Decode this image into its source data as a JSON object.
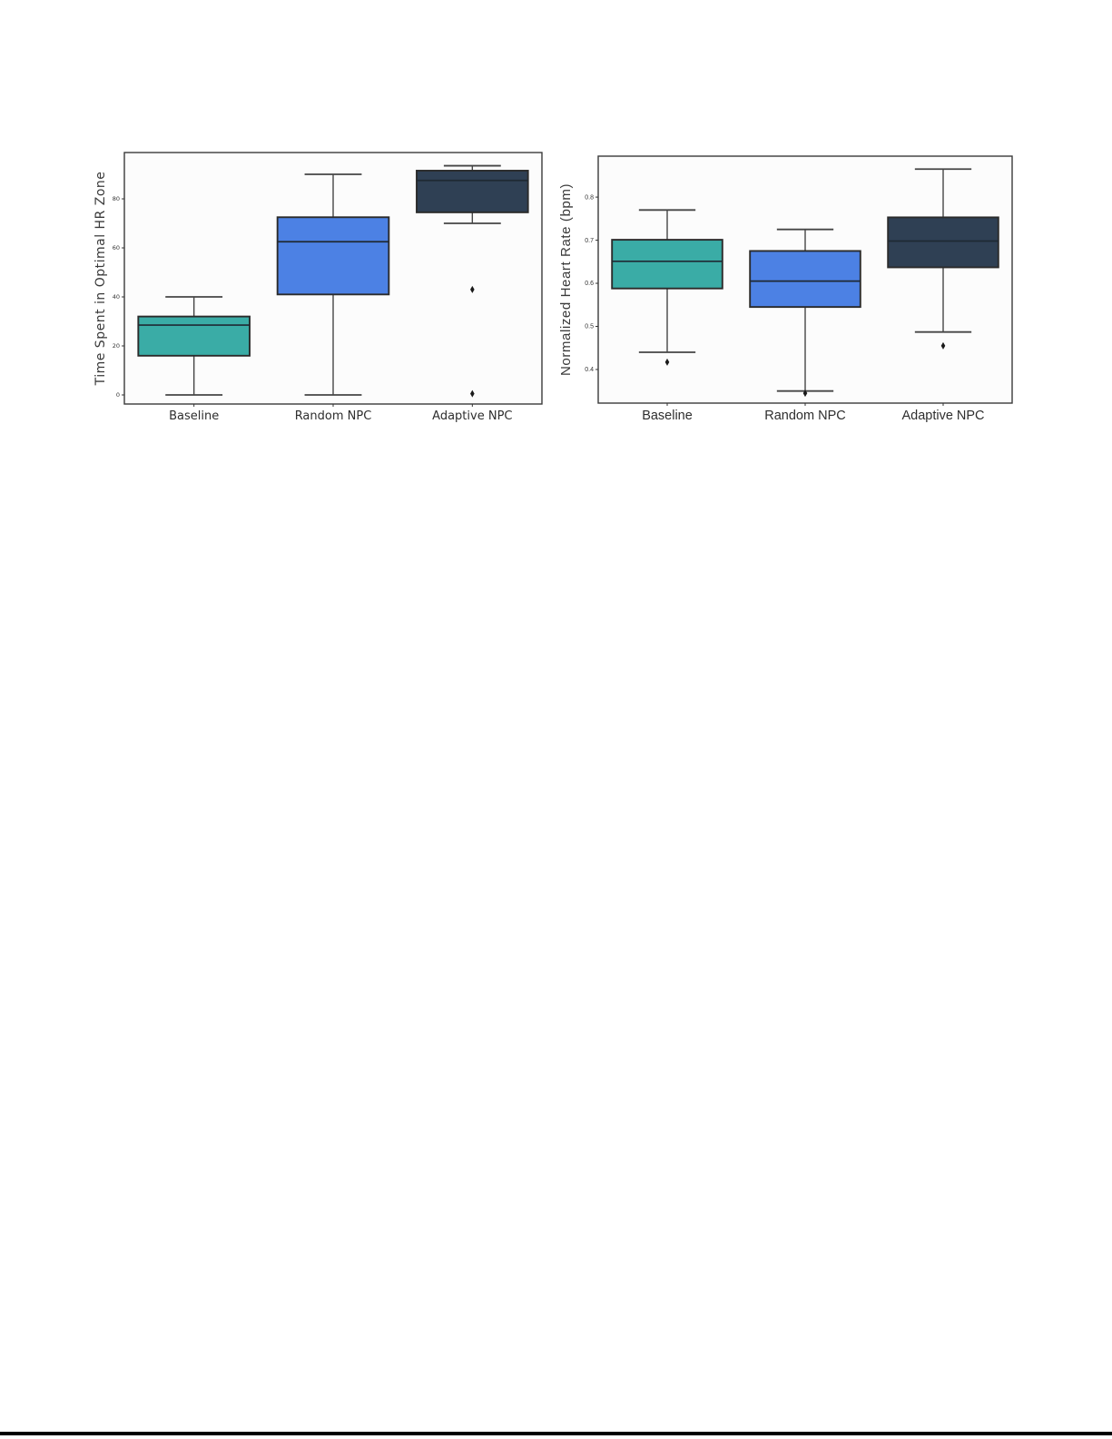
{
  "page": {
    "background_color": "#ffffff",
    "bottom_divider_color": "#000000"
  },
  "palette": {
    "teal": "#3AACA6",
    "blue": "#4C81E4",
    "dark_navy": "#2F4054",
    "box_border": "#2B2B2B",
    "median_line": "#1F2933",
    "whisker": "#454545",
    "frame": "#3A3A3A",
    "tick_text": "#333333",
    "plot_background": "#FCFCFC"
  },
  "chart_data": [
    {
      "type": "box",
      "title": "",
      "xlabel": "",
      "ylabel": "Time Spent in Optimal HR Zone",
      "categories": [
        "Baseline",
        "Random NPC",
        "Adaptive NPC"
      ],
      "yticks": [
        0,
        20,
        40,
        60,
        80
      ],
      "ylim": [
        -3.7,
        98.9
      ],
      "grid": false,
      "legend": "none",
      "series": [
        {
          "category": "Baseline",
          "whisker_low": 0,
          "q1": 16,
          "median": 28.5,
          "q3": 32,
          "whisker_high": 40,
          "outliers": [],
          "color": "#3AACA6"
        },
        {
          "category": "Random NPC",
          "whisker_low": 0,
          "q1": 41,
          "median": 62.5,
          "q3": 72.5,
          "whisker_high": 90,
          "outliers": [],
          "color": "#4C81E4"
        },
        {
          "category": "Adaptive NPC",
          "whisker_low": 70,
          "q1": 74.5,
          "median": 87.5,
          "q3": 91.5,
          "whisker_high": 93.5,
          "outliers": [
            43,
            0.5
          ],
          "color": "#2F4054"
        }
      ]
    },
    {
      "type": "box",
      "title": "",
      "xlabel": "",
      "ylabel": "Normalized Heart Rate (bpm)",
      "categories": [
        "Baseline",
        "Random NPC",
        "Adaptive NPC"
      ],
      "yticks": [
        0.4,
        0.5,
        0.6,
        0.7,
        0.8
      ],
      "ylim": [
        0.322,
        0.895
      ],
      "grid": false,
      "legend": "none",
      "series": [
        {
          "category": "Baseline",
          "whisker_low": 0.44,
          "q1": 0.588,
          "median": 0.651,
          "q3": 0.701,
          "whisker_high": 0.77,
          "outliers": [
            0.417
          ],
          "color": "#3AACA6"
        },
        {
          "category": "Random NPC",
          "whisker_low": 0.35,
          "q1": 0.545,
          "median": 0.605,
          "q3": 0.675,
          "whisker_high": 0.725,
          "outliers": [
            0.345
          ],
          "color": "#4C81E4"
        },
        {
          "category": "Adaptive NPC",
          "whisker_low": 0.487,
          "q1": 0.637,
          "median": 0.698,
          "q3": 0.753,
          "whisker_high": 0.865,
          "outliers": [
            0.455
          ],
          "color": "#2F4054"
        }
      ]
    }
  ]
}
